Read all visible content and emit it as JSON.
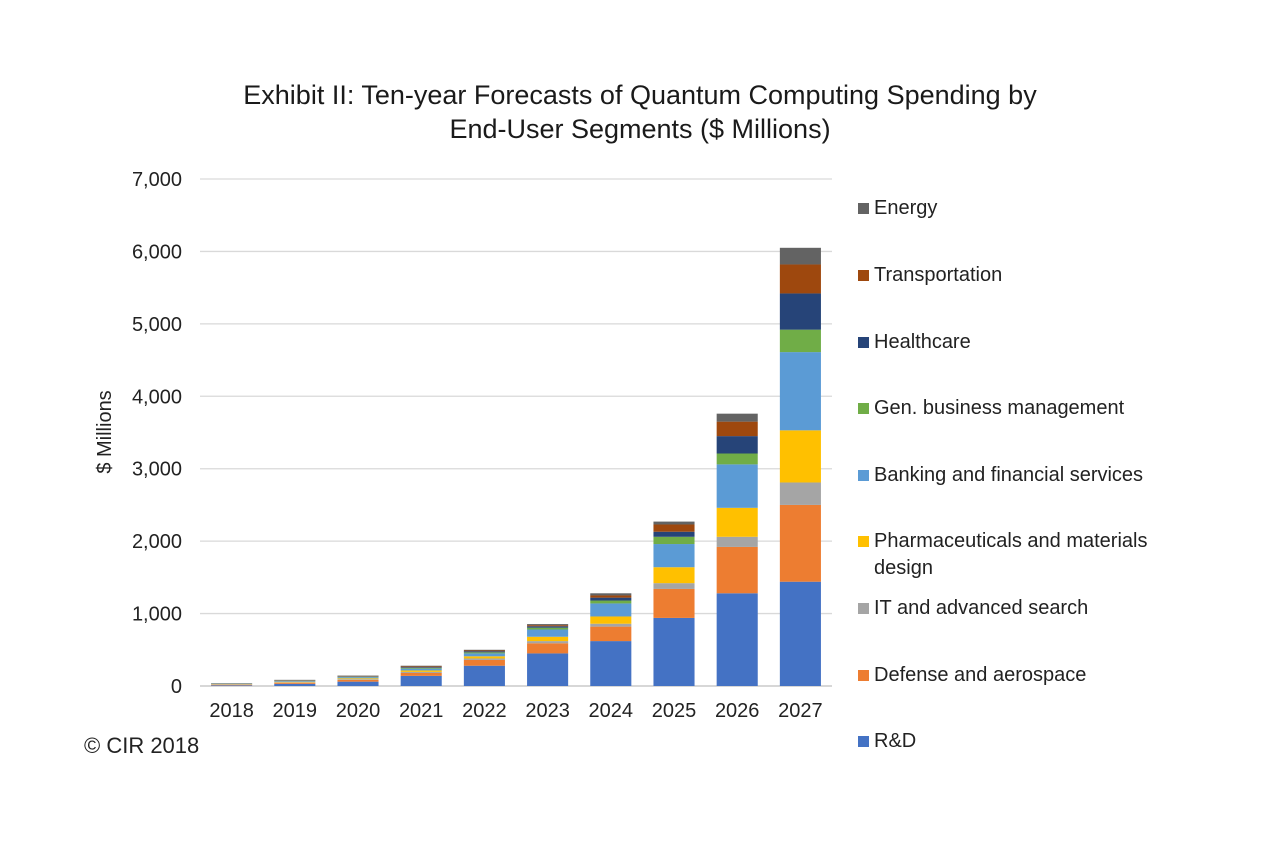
{
  "title": {
    "line1": "Exhibit II:  Ten-year  Forecasts of Quantum  Computing Spending by",
    "line2": "End-User Segments ($ Millions)"
  },
  "copyright": "© CIR 2018",
  "chart_data": {
    "type": "bar",
    "stacked": true,
    "title": "Exhibit II:  Ten-year  Forecasts of Quantum  Computing Spending by End-User Segments ($ Millions)",
    "xlabel": "",
    "ylabel": "$ Millions",
    "ylim": [
      0,
      7000
    ],
    "yticks": [
      0,
      1000,
      2000,
      3000,
      4000,
      5000,
      6000,
      7000
    ],
    "ytick_labels": [
      "0",
      "1,000",
      "2,000",
      "3,000",
      "4,000",
      "5,000",
      "6,000",
      "7,000"
    ],
    "grid": true,
    "legend_position": "right",
    "categories": [
      "2018",
      "2019",
      "2020",
      "2021",
      "2022",
      "2023",
      "2024",
      "2025",
      "2026",
      "2027"
    ],
    "series": [
      {
        "name": "R&D",
        "color": "#4472C4",
        "values": [
          10,
          30,
          60,
          140,
          280,
          450,
          620,
          940,
          1280,
          1440
        ]
      },
      {
        "name": "Defense and aerospace",
        "color": "#ED7D31",
        "values": [
          8,
          15,
          25,
          40,
          80,
          140,
          200,
          400,
          640,
          1060
        ]
      },
      {
        "name": "IT and advanced search",
        "color": "#A5A5A5",
        "values": [
          4,
          6,
          10,
          15,
          20,
          30,
          40,
          80,
          140,
          310
        ]
      },
      {
        "name": "Pharmaceuticals and materials design",
        "color": "#FFC000",
        "values": [
          4,
          8,
          12,
          20,
          30,
          60,
          100,
          220,
          400,
          720
        ]
      },
      {
        "name": "Banking and financial services",
        "color": "#5B9BD5",
        "values": [
          5,
          10,
          15,
          25,
          40,
          100,
          180,
          320,
          600,
          1080
        ]
      },
      {
        "name": "Gen. business management",
        "color": "#70AD47",
        "values": [
          2,
          4,
          6,
          10,
          15,
          25,
          40,
          100,
          150,
          310
        ]
      },
      {
        "name": "Healthcare",
        "color": "#264478",
        "values": [
          2,
          4,
          6,
          10,
          15,
          20,
          40,
          70,
          240,
          500
        ]
      },
      {
        "name": "Transportation",
        "color": "#9E480E",
        "values": [
          2,
          4,
          6,
          10,
          10,
          15,
          30,
          100,
          200,
          400
        ]
      },
      {
        "name": "Energy",
        "color": "#636363",
        "values": [
          3,
          4,
          5,
          10,
          10,
          15,
          30,
          40,
          110,
          230
        ]
      }
    ]
  },
  "legend": {
    "items": [
      {
        "label": "Energy",
        "color": "#636363"
      },
      {
        "label": "Transportation",
        "color": "#9E480E"
      },
      {
        "label": "Healthcare",
        "color": "#264478"
      },
      {
        "label": "Gen. business management",
        "color": "#70AD47"
      },
      {
        "label": "Banking and financial services",
        "color": "#5B9BD5"
      },
      {
        "label": "Pharmaceuticals and materials design",
        "color": "#FFC000"
      },
      {
        "label": "IT and advanced search",
        "color": "#A5A5A5"
      },
      {
        "label": "Defense and aerospace",
        "color": "#ED7D31"
      },
      {
        "label": "R&D",
        "color": "#4472C4"
      }
    ]
  }
}
